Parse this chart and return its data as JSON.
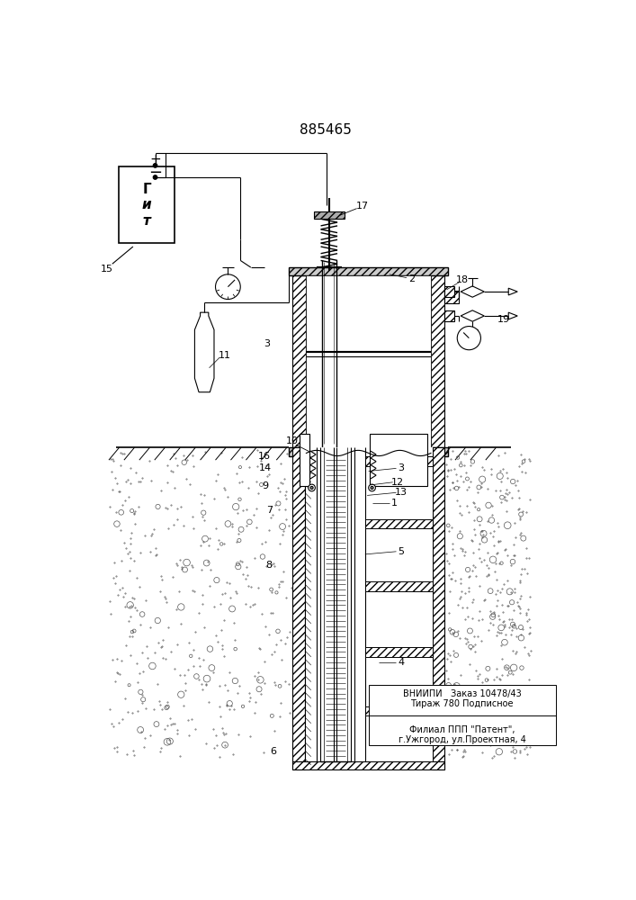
{
  "title": "885465",
  "patent_info_line1": "ВНИИПИ   Заказ 10478/43",
  "patent_info_line2": "Тираж 780 Подписное",
  "patent_info_line3": "Филиал ППП \"Патент\",",
  "patent_info_line4": "г.Ужгород, ул.Проектная, 4",
  "bg_color": "#ffffff",
  "line_color": "#000000"
}
